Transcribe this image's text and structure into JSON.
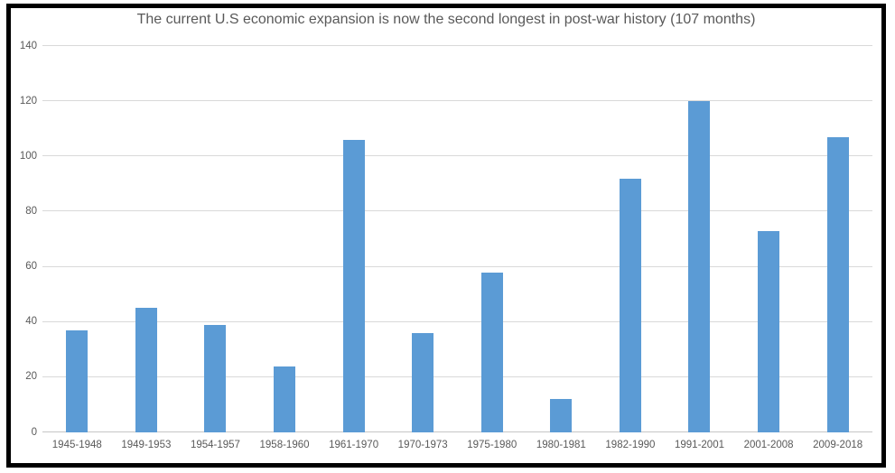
{
  "chart_data": {
    "type": "bar",
    "title": "The current U.S economic expansion is now the second longest in post-war history (107 months)",
    "categories": [
      "1945-1948",
      "1949-1953",
      "1954-1957",
      "1958-1960",
      "1961-1970",
      "1970-1973",
      "1975-1980",
      "1980-1981",
      "1982-1990",
      "1991-2001",
      "2001-2008",
      "2009-2018"
    ],
    "values": [
      37,
      45,
      39,
      24,
      106,
      36,
      58,
      12,
      92,
      120,
      73,
      107
    ],
    "xlabel": "",
    "ylabel": "",
    "ylim": [
      0,
      140
    ],
    "yticks": [
      0,
      20,
      40,
      60,
      80,
      100,
      120,
      140
    ],
    "grid": "horizontal",
    "legend": "none",
    "bar_color": "#5B9BD5",
    "gridline_color": "#D9D9D9",
    "axis_line_color": "#C6C6C6",
    "text_color": "#595959",
    "background_color": "#FFFFFF",
    "frame_border_color": "#000000"
  }
}
